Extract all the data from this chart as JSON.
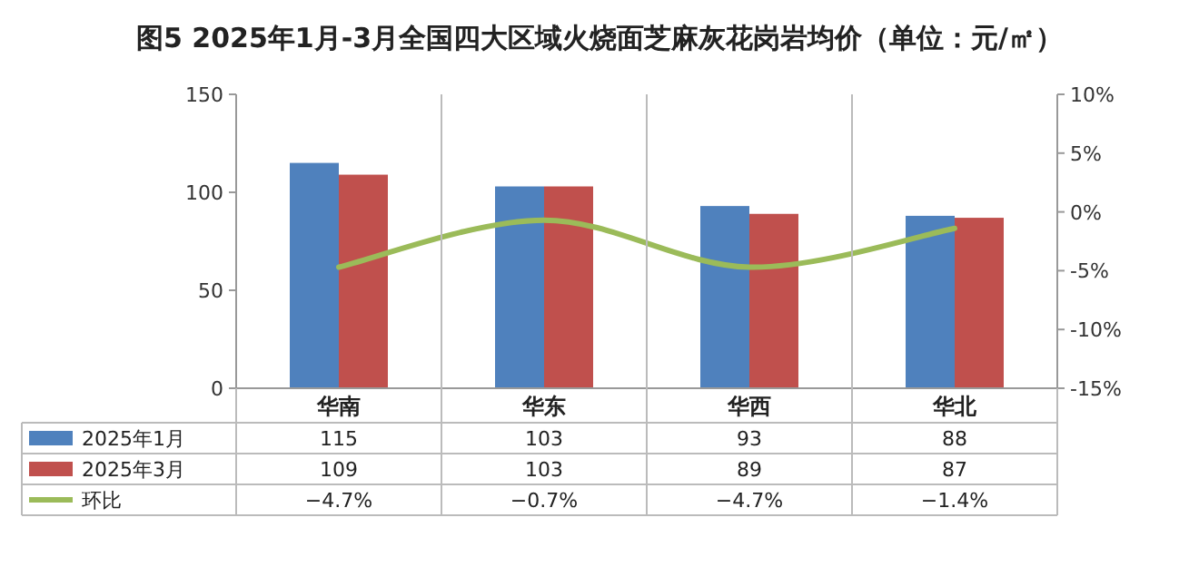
{
  "chart_data": {
    "type": "bar",
    "title": "图5  2025年1月-3月全国四大区域火烧面芝麻灰花岗岩均价（单位：元/㎡）",
    "categories": [
      "华南",
      "华东",
      "华西",
      "华北"
    ],
    "series": [
      {
        "name": "2025年1月",
        "color": "#4f81bd",
        "values": [
          115,
          103,
          93,
          88
        ],
        "value_labels": [
          "115",
          "103",
          "93",
          "88"
        ]
      },
      {
        "name": "2025年3月",
        "color": "#c0504d",
        "values": [
          109,
          103,
          89,
          87
        ],
        "value_labels": [
          "109",
          "103",
          "89",
          "87"
        ]
      },
      {
        "name": "环比",
        "type": "line",
        "axis": "y2",
        "color": "#9bbb59",
        "values": [
          -4.7,
          -0.7,
          -4.7,
          -1.4
        ],
        "value_labels": [
          "−4.7%",
          "−0.7%",
          "−4.7%",
          "−1.4%"
        ]
      }
    ],
    "ylim": [
      0,
      150
    ],
    "yticks": [
      0,
      50,
      100,
      150
    ],
    "y2lim": [
      -15,
      10
    ],
    "y2ticks": [
      {
        "value": 10,
        "label": "10%"
      },
      {
        "value": 5,
        "label": "5%"
      },
      {
        "value": 0,
        "label": "0%"
      },
      {
        "value": -5,
        "label": "-5%"
      },
      {
        "value": -10,
        "label": "-10%"
      },
      {
        "value": -15,
        "label": "-15%"
      }
    ],
    "legend": "bottom",
    "grid": false
  }
}
